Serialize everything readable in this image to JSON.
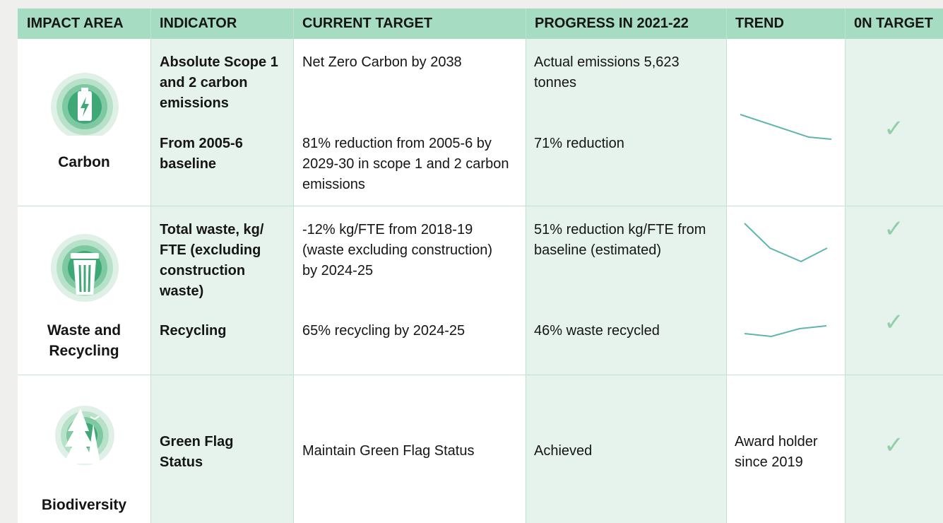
{
  "header": [
    "IMPACT AREA",
    "INDICATOR",
    "CURRENT TARGET",
    "PROGRESS IN 2021-22",
    "TREND",
    "0N TARGET"
  ],
  "rows": [
    {
      "impact_area": "Carbon",
      "items": [
        {
          "indicator": "Absolute Scope 1 and 2 carbon emissions",
          "target": "Net Zero Carbon by 2038",
          "progress": "Actual emissions 5,623 tonnes"
        },
        {
          "indicator": "From 2005-6 baseline",
          "target": "81% reduction from 2005-6 by 2029-30 in scope 1 and 2 carbon emissions",
          "progress": "71% reduction"
        }
      ],
      "on_target": [
        "✓"
      ]
    },
    {
      "impact_area": "Waste and Recycling",
      "items": [
        {
          "indicator": "Total waste, kg/ FTE (excluding construction waste)",
          "target": "-12% kg/FTE from 2018-19 (waste excluding construction) by 2024-25",
          "progress": "51% reduction kg/FTE from baseline (estimated)"
        },
        {
          "indicator": "Recycling",
          "target": "65% recycling by 2024-25",
          "progress": "46% waste recycled"
        }
      ],
      "on_target": [
        "✓",
        "✓"
      ]
    },
    {
      "impact_area": "Biodiversity",
      "items": [
        {
          "indicator": "Green Flag Status",
          "target": "Maintain Green Flag Status",
          "progress": "Achieved"
        }
      ],
      "trend": "Award holder since 2019",
      "on_target": [
        "✓"
      ]
    }
  ]
}
